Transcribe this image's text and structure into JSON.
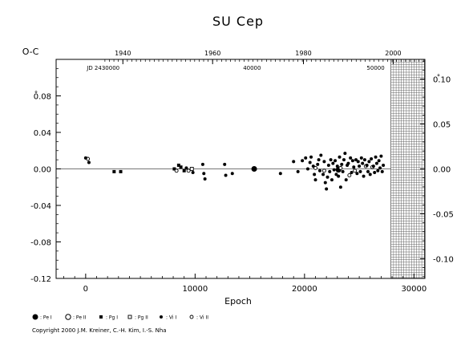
{
  "chart_data": {
    "type": "scatter",
    "title": "SU Cep",
    "xlabel": "Epoch",
    "ylabel": "O-C",
    "xlim": [
      -2700,
      31000
    ],
    "ylim": [
      -0.12,
      0.12
    ],
    "y2lim": [
      -0.122,
      0.122
    ],
    "top_years_label_ticks": [
      {
        "epoch": 3400,
        "label": "1940"
      },
      {
        "epoch": 11600,
        "label": "1960"
      },
      {
        "epoch": 19900,
        "label": "1980"
      },
      {
        "epoch": 28100,
        "label": "2000"
      }
    ],
    "top_jd_labels": [
      {
        "epoch": 1600,
        "label": "JD 2430000"
      },
      {
        "epoch": 15200,
        "label": "40000"
      },
      {
        "epoch": 26500,
        "label": "50000"
      }
    ],
    "x_ticks": [
      0,
      10000,
      20000,
      30000
    ],
    "x_tick_labels": [
      "0",
      "10000",
      "20000",
      "30000"
    ],
    "y_ticks": [
      -0.12,
      -0.08,
      -0.04,
      0.0,
      0.04,
      0.08
    ],
    "y_tick_labels": [
      "-0.12",
      "-0.08",
      "-0.04",
      "0.00",
      "0.04",
      "0.08"
    ],
    "y2_ticks": [
      -0.1,
      -0.05,
      0.0,
      0.05,
      0.1
    ],
    "y2_tick_labels": [
      "-0.10",
      "-0.05",
      "0.00",
      "0.05",
      "0.10"
    ],
    "zero_line": true,
    "future_region_start_epoch": 27900,
    "legend": [
      {
        "symbol": "filled-circle-large",
        "label": ": Pe I"
      },
      {
        "symbol": "open-circle-large",
        "label": ": Pe II"
      },
      {
        "symbol": "filled-square",
        "label": ": Pg I"
      },
      {
        "symbol": "open-square",
        "label": ": Pg II"
      },
      {
        "symbol": "filled-dot",
        "label": ": Vi I"
      },
      {
        "symbol": "open-dot",
        "label": ": Vi II"
      }
    ],
    "series": [
      {
        "symbol": "filled-circle-large",
        "points": [
          [
            15400,
            0.0
          ],
          [
            23100,
            -0.001
          ]
        ]
      },
      {
        "symbol": "filled-square",
        "points": [
          [
            2600,
            -0.003
          ],
          [
            3200,
            -0.003
          ],
          [
            8100,
            0.0
          ],
          [
            8500,
            0.004
          ],
          [
            8700,
            0.002
          ],
          [
            9000,
            -0.002
          ]
        ]
      },
      {
        "symbol": "open-square",
        "points": [
          [
            9700,
            0.0
          ]
        ]
      },
      {
        "symbol": "open-dot",
        "points": [
          [
            200,
            0.011
          ],
          [
            8300,
            -0.002
          ],
          [
            9400,
            -0.002
          ],
          [
            21000,
            0.001
          ],
          [
            21800,
            -0.002
          ],
          [
            23300,
            0.001
          ],
          [
            24100,
            -0.007
          ],
          [
            24600,
            -0.002
          ],
          [
            25600,
            0.003
          ],
          [
            26200,
            0.002
          ]
        ]
      },
      {
        "symbol": "filled-dot",
        "points": [
          [
            0,
            0.012
          ],
          [
            300,
            0.007
          ],
          [
            9200,
            0.001
          ],
          [
            9800,
            -0.004
          ],
          [
            10700,
            0.005
          ],
          [
            10800,
            -0.005
          ],
          [
            10900,
            -0.011
          ],
          [
            12700,
            0.005
          ],
          [
            12800,
            -0.007
          ],
          [
            13400,
            -0.005
          ],
          [
            17800,
            -0.005
          ],
          [
            19000,
            0.008
          ],
          [
            19400,
            -0.003
          ],
          [
            19800,
            0.009
          ],
          [
            20100,
            0.012
          ],
          [
            20300,
            0.0
          ],
          [
            20500,
            0.007
          ],
          [
            20600,
            0.013
          ],
          [
            20800,
            0.003
          ],
          [
            20900,
            -0.006
          ],
          [
            21000,
            -0.012
          ],
          [
            21200,
            0.005
          ],
          [
            21300,
            0.01
          ],
          [
            21400,
            -0.002
          ],
          [
            21500,
            0.015
          ],
          [
            21700,
            -0.006
          ],
          [
            21800,
            0.008
          ],
          [
            21900,
            -0.015
          ],
          [
            22000,
            -0.022
          ],
          [
            22100,
            -0.009
          ],
          [
            22200,
            0.004
          ],
          [
            22300,
            -0.003
          ],
          [
            22400,
            0.01
          ],
          [
            22500,
            -0.012
          ],
          [
            22600,
            0.006
          ],
          [
            22700,
            -0.001
          ],
          [
            22800,
            0.009
          ],
          [
            22900,
            -0.006
          ],
          [
            23000,
            0.003
          ],
          [
            23100,
            -0.008
          ],
          [
            23200,
            0.013
          ],
          [
            23300,
            -0.02
          ],
          [
            23400,
            0.005
          ],
          [
            23500,
            -0.003
          ],
          [
            23600,
            0.01
          ],
          [
            23700,
            0.017
          ],
          [
            23800,
            -0.012
          ],
          [
            23900,
            0.004
          ],
          [
            24000,
            0.006
          ],
          [
            24200,
            0.012
          ],
          [
            24300,
            -0.004
          ],
          [
            24400,
            0.009
          ],
          [
            24500,
            0.002
          ],
          [
            24700,
            0.01
          ],
          [
            24800,
            -0.005
          ],
          [
            24900,
            0.008
          ],
          [
            25000,
            0.003
          ],
          [
            25100,
            -0.003
          ],
          [
            25200,
            0.012
          ],
          [
            25300,
            0.006
          ],
          [
            25400,
            -0.008
          ],
          [
            25500,
            0.01
          ],
          [
            25700,
            0.004
          ],
          [
            25800,
            -0.003
          ],
          [
            25900,
            0.008
          ],
          [
            26000,
            -0.006
          ],
          [
            26100,
            0.011
          ],
          [
            26300,
            0.003
          ],
          [
            26400,
            -0.004
          ],
          [
            26500,
            0.013
          ],
          [
            26600,
            0.006
          ],
          [
            26700,
            -0.002
          ],
          [
            26800,
            0.009
          ],
          [
            26900,
            0.001
          ],
          [
            27000,
            0.014
          ],
          [
            27100,
            -0.003
          ],
          [
            27200,
            0.004
          ]
        ]
      }
    ]
  },
  "copyright": "Copyright 2000 J.M. Kreiner, C.-H. Kim, I.-S. Nha"
}
